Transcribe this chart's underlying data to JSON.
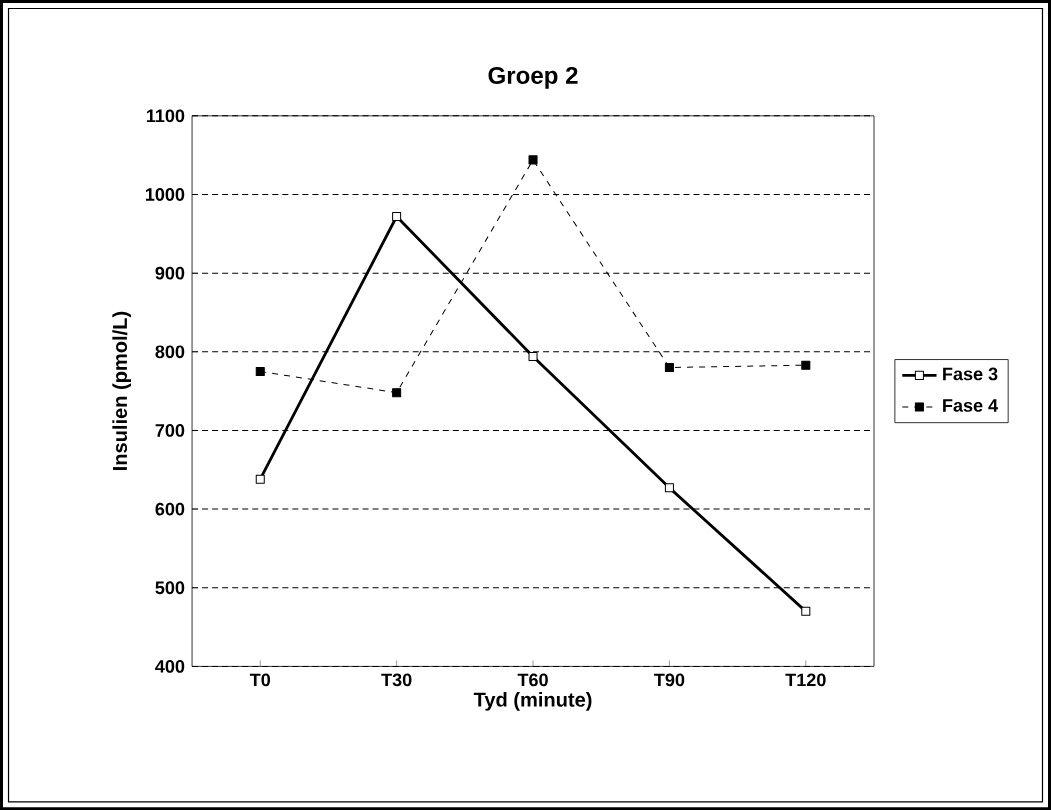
{
  "chart_data": {
    "type": "line",
    "title": "Groep 2",
    "xlabel": "Tyd   (minute)",
    "ylabel": "Insulien  (pmol/L)",
    "categories": [
      "T0",
      "T30",
      "T60",
      "T90",
      "T120"
    ],
    "series": [
      {
        "name": "Fase 3",
        "color": "#000000",
        "line_style": "solid",
        "marker": "square",
        "values": [
          638,
          972,
          794,
          627,
          470
        ]
      },
      {
        "name": "Fase 4",
        "color": "#000000",
        "line_style": "dashed",
        "marker": "square",
        "values": [
          775,
          748,
          1044,
          780,
          783
        ]
      }
    ],
    "ylim": [
      400,
      1100
    ],
    "yticks": [
      400,
      500,
      600,
      700,
      800,
      900,
      1000,
      1100
    ],
    "grid": "y",
    "legend": "right"
  }
}
